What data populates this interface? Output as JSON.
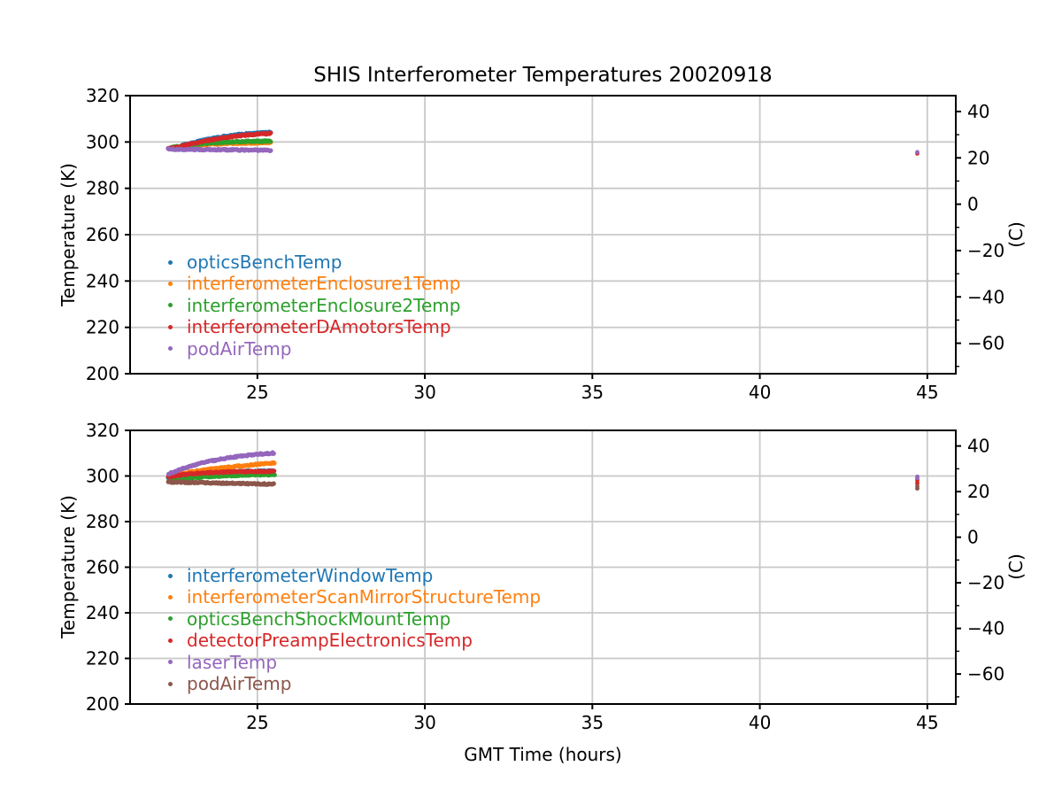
{
  "figure": {
    "title": "SHIS Interferometer Temperatures 20020918",
    "xlabel": "GMT Time (hours)",
    "background": "#ffffff",
    "grid_color": "#c9c9c9",
    "axis_color": "#000000",
    "text_color": "#000000"
  },
  "chart_data": [
    {
      "type": "scatter",
      "subplot": "top",
      "ylabel_left": "Temperature (K)",
      "xlim": [
        21.2,
        45.85
      ],
      "ylim": [
        200,
        320
      ],
      "grid": true,
      "xticks": [
        25,
        30,
        35,
        40,
        45
      ],
      "yticks_left": [
        200,
        220,
        240,
        260,
        280,
        300,
        320
      ],
      "right_axis": {
        "label": "(C)",
        "major_c": [
          40,
          20,
          0,
          -20,
          -40,
          -60
        ],
        "major_labels": [
          "40",
          "20",
          "0",
          "−20",
          "−40",
          "−60"
        ],
        "minor_c": [
          30,
          10,
          -10,
          -30,
          -50,
          -70
        ],
        "kelvin_offset": 273.15
      },
      "legend_position": "lower-left-inside",
      "series": [
        {
          "name": "opticsBenchTemp",
          "color": "#1f77b4",
          "keypoints": [
            [
              22.35,
              297.1
            ],
            [
              22.7,
              298.3
            ],
            [
              23.0,
              299.4
            ],
            [
              23.4,
              300.8
            ],
            [
              23.8,
              301.9
            ],
            [
              24.2,
              302.8
            ],
            [
              24.6,
              303.4
            ],
            [
              25.0,
              303.8
            ],
            [
              25.4,
              304.1
            ]
          ],
          "outliers": []
        },
        {
          "name": "interferometerEnclosure1Temp",
          "color": "#ff7f0e",
          "keypoints": [
            [
              22.35,
              297.2
            ],
            [
              22.8,
              298.0
            ],
            [
              23.2,
              298.6
            ],
            [
              23.6,
              299.0
            ],
            [
              24.0,
              299.3
            ],
            [
              24.5,
              299.5
            ],
            [
              25.0,
              299.6
            ],
            [
              25.4,
              299.7
            ]
          ],
          "outliers": []
        },
        {
          "name": "interferometerEnclosure2Temp",
          "color": "#2ca02c",
          "keypoints": [
            [
              22.35,
              297.4
            ],
            [
              22.8,
              298.4
            ],
            [
              23.2,
              299.1
            ],
            [
              23.6,
              299.6
            ],
            [
              24.0,
              299.9
            ],
            [
              24.5,
              300.2
            ],
            [
              25.0,
              300.3
            ],
            [
              25.4,
              300.4
            ]
          ],
          "outliers": []
        },
        {
          "name": "interferometerDAmotorsTemp",
          "color": "#d62728",
          "keypoints": [
            [
              22.35,
              297.0
            ],
            [
              22.7,
              298.1
            ],
            [
              23.0,
              299.1
            ],
            [
              23.4,
              300.3
            ],
            [
              23.8,
              301.4
            ],
            [
              24.2,
              302.2
            ],
            [
              24.6,
              302.9
            ],
            [
              25.0,
              303.4
            ],
            [
              25.4,
              303.7
            ]
          ],
          "outliers": [
            [
              44.7,
              295.0
            ]
          ]
        },
        {
          "name": "podAirTemp",
          "color": "#9467bd",
          "keypoints": [
            [
              22.35,
              296.9
            ],
            [
              23.0,
              296.8
            ],
            [
              23.6,
              296.7
            ],
            [
              24.2,
              296.6
            ],
            [
              24.8,
              296.5
            ],
            [
              25.4,
              296.4
            ]
          ],
          "outliers": [
            [
              44.7,
              295.6
            ]
          ]
        }
      ]
    },
    {
      "type": "scatter",
      "subplot": "bottom",
      "ylabel_left": "Temperature (K)",
      "xlim": [
        21.2,
        45.85
      ],
      "ylim": [
        200,
        320
      ],
      "grid": true,
      "xticks": [
        25,
        30,
        35,
        40,
        45
      ],
      "yticks_left": [
        200,
        220,
        240,
        260,
        280,
        300,
        320
      ],
      "right_axis": {
        "label": "(C)",
        "major_c": [
          40,
          20,
          0,
          -20,
          -40,
          -60
        ],
        "major_labels": [
          "40",
          "20",
          "0",
          "−20",
          "−40",
          "−60"
        ],
        "minor_c": [
          30,
          10,
          -10,
          -30,
          -50,
          -70
        ],
        "kelvin_offset": 273.15
      },
      "legend_position": "lower-left-inside",
      "series": [
        {
          "name": "interferometerWindowTemp",
          "color": "#1f77b4",
          "keypoints": [
            [
              22.35,
              299.5
            ],
            [
              22.8,
              300.5
            ],
            [
              23.2,
              301.1
            ],
            [
              23.6,
              301.5
            ],
            [
              24.0,
              301.8
            ],
            [
              24.5,
              302.0
            ],
            [
              25.0,
              302.1
            ],
            [
              25.5,
              302.2
            ]
          ],
          "outliers": []
        },
        {
          "name": "interferometerScanMirrorStructureTemp",
          "color": "#ff7f0e",
          "keypoints": [
            [
              22.35,
              299.9
            ],
            [
              22.8,
              301.2
            ],
            [
              23.2,
              302.2
            ],
            [
              23.6,
              303.0
            ],
            [
              24.0,
              303.7
            ],
            [
              24.5,
              304.4
            ],
            [
              25.0,
              305.1
            ],
            [
              25.5,
              305.7
            ]
          ],
          "outliers": [
            [
              44.7,
              297.5
            ]
          ]
        },
        {
          "name": "opticsBenchShockMountTemp",
          "color": "#2ca02c",
          "keypoints": [
            [
              22.35,
              297.9
            ],
            [
              22.8,
              298.8
            ],
            [
              23.2,
              299.4
            ],
            [
              23.6,
              299.8
            ],
            [
              24.0,
              300.1
            ],
            [
              24.5,
              300.3
            ],
            [
              25.0,
              300.5
            ],
            [
              25.5,
              300.6
            ]
          ],
          "outliers": []
        },
        {
          "name": "detectorPreampElectronicsTemp",
          "color": "#d62728",
          "keypoints": [
            [
              22.35,
              299.7
            ],
            [
              22.8,
              300.6
            ],
            [
              23.2,
              301.2
            ],
            [
              23.6,
              301.5
            ],
            [
              24.0,
              301.7
            ],
            [
              24.5,
              301.9
            ],
            [
              25.0,
              302.0
            ],
            [
              25.5,
              302.1
            ]
          ],
          "outliers": [
            [
              44.7,
              298.3
            ],
            [
              44.7,
              296.7
            ]
          ]
        },
        {
          "name": "laserTemp",
          "color": "#9467bd",
          "keypoints": [
            [
              22.35,
              300.9
            ],
            [
              22.7,
              302.8
            ],
            [
              23.0,
              304.3
            ],
            [
              23.4,
              305.9
            ],
            [
              23.8,
              307.1
            ],
            [
              24.2,
              308.1
            ],
            [
              24.6,
              308.9
            ],
            [
              25.0,
              309.5
            ],
            [
              25.5,
              310.1
            ]
          ],
          "outliers": [
            [
              44.7,
              299.7
            ],
            [
              44.7,
              299.1
            ]
          ]
        },
        {
          "name": "podAirTemp",
          "color": "#8c564b",
          "keypoints": [
            [
              22.35,
              297.4
            ],
            [
              23.0,
              297.2
            ],
            [
              23.6,
              297.0
            ],
            [
              24.2,
              296.8
            ],
            [
              24.8,
              296.6
            ],
            [
              25.5,
              296.4
            ]
          ],
          "outliers": [
            [
              44.7,
              295.4
            ],
            [
              44.7,
              294.5
            ]
          ]
        }
      ]
    }
  ]
}
